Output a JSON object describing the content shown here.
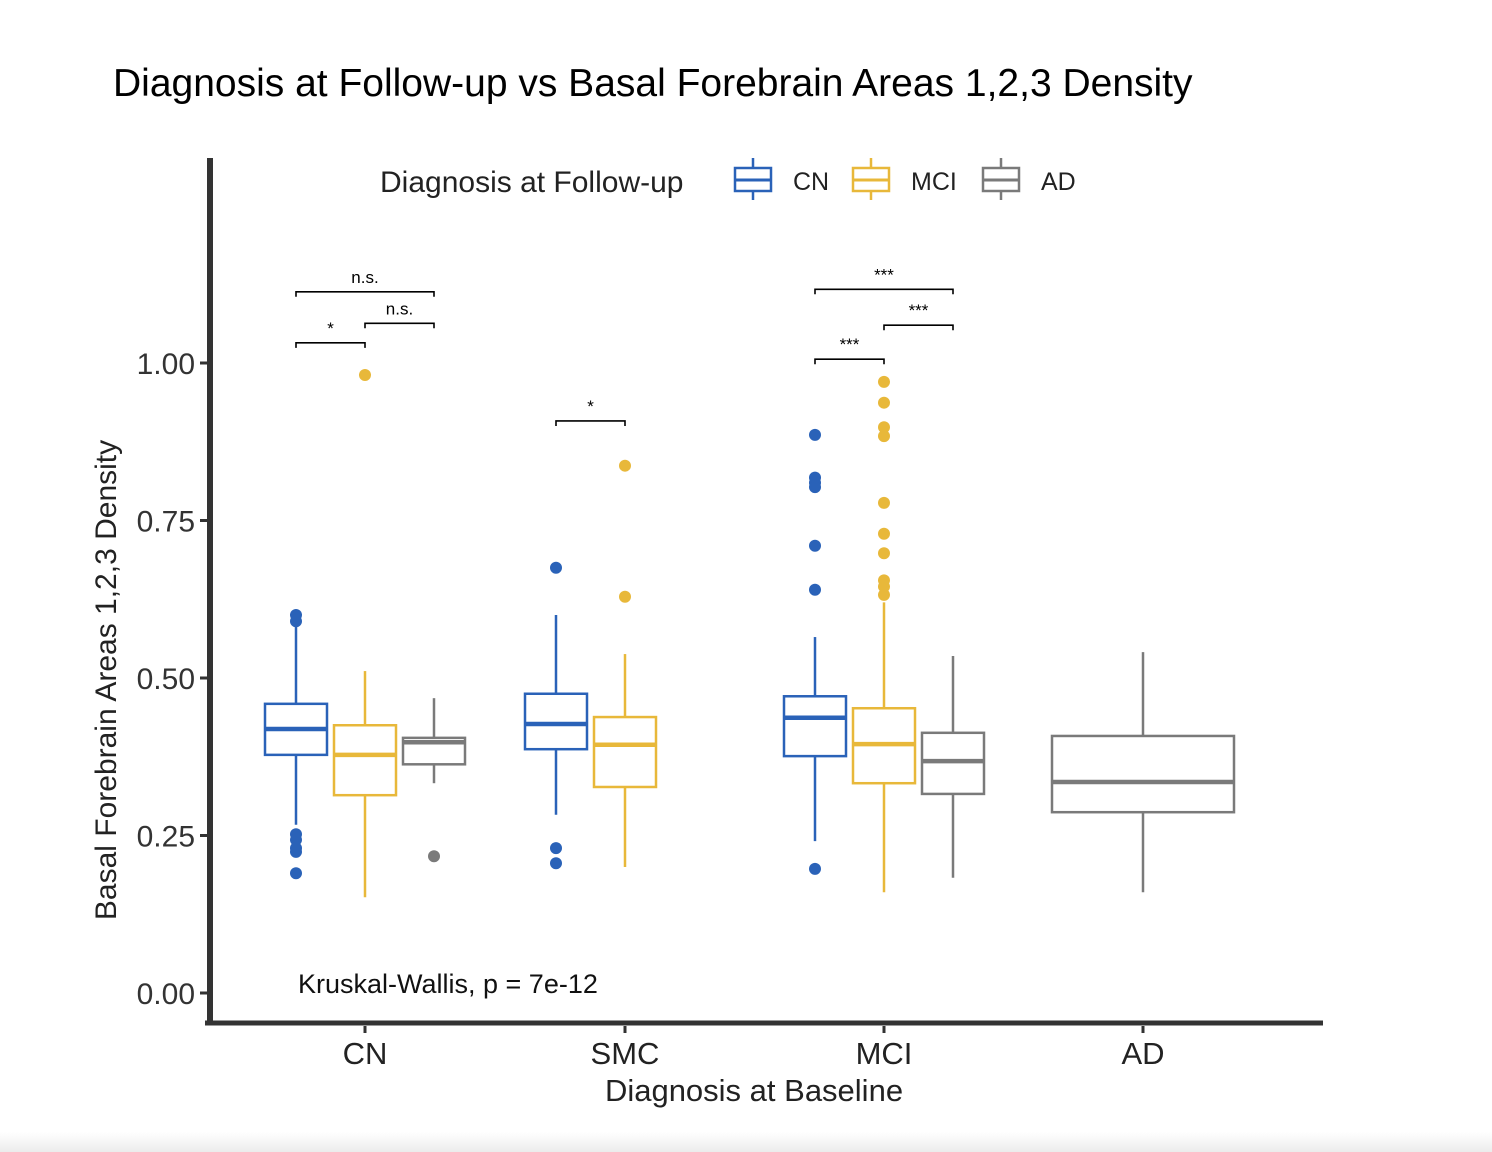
{
  "title": "Diagnosis at Follow-up vs Basal Forebrain Areas 1,2,3 Density",
  "chart_data": {
    "type": "box",
    "title": "Diagnosis at Follow-up vs Basal Forebrain Areas 1,2,3 Density",
    "xlabel": "Diagnosis at Baseline",
    "ylabel": "Basal Forebrain Areas 1,2,3 Density",
    "ylim": [
      0,
      1.2
    ],
    "yticks": [
      0,
      0.25,
      0.5,
      0.75,
      1.0
    ],
    "ytick_labels": [
      "0.00",
      "0.25",
      "0.50",
      "0.75",
      "1.00"
    ],
    "categories": [
      "CN",
      "SMC",
      "MCI",
      "AD"
    ],
    "legend": {
      "title": "Diagnosis at Follow-up",
      "position": "top",
      "entries": [
        "CN",
        "MCI",
        "AD"
      ]
    },
    "colors": {
      "CN": "#2a62b8",
      "MCI": "#e8b83a",
      "AD": "#7a7a7a"
    },
    "annotation": "Kruskal-Wallis, p = 7e-12",
    "boxes": [
      {
        "baseline": "CN",
        "followup": "CN",
        "whisker_low": 0.267,
        "q1": 0.378,
        "median": 0.419,
        "q3": 0.459,
        "whisker_high": 0.584,
        "outliers": [
          0.6,
          0.59,
          0.252,
          0.243,
          0.23,
          0.224,
          0.19
        ]
      },
      {
        "baseline": "CN",
        "followup": "MCI",
        "whisker_low": 0.152,
        "q1": 0.314,
        "median": 0.378,
        "q3": 0.425,
        "whisker_high": 0.511,
        "outliers": [
          0.981
        ]
      },
      {
        "baseline": "CN",
        "followup": "AD",
        "whisker_low": 0.333,
        "q1": 0.363,
        "median": 0.398,
        "q3": 0.405,
        "whisker_high": 0.468,
        "outliers": [
          0.217
        ]
      },
      {
        "baseline": "SMC",
        "followup": "CN",
        "whisker_low": 0.283,
        "q1": 0.387,
        "median": 0.427,
        "q3": 0.475,
        "whisker_high": 0.6,
        "outliers": [
          0.675,
          0.23,
          0.206
        ]
      },
      {
        "baseline": "SMC",
        "followup": "MCI",
        "whisker_low": 0.2,
        "q1": 0.327,
        "median": 0.394,
        "q3": 0.438,
        "whisker_high": 0.538,
        "outliers": [
          0.837,
          0.629
        ]
      },
      {
        "baseline": "MCI",
        "followup": "CN",
        "whisker_low": 0.241,
        "q1": 0.376,
        "median": 0.437,
        "q3": 0.471,
        "whisker_high": 0.565,
        "outliers": [
          0.886,
          0.818,
          0.81,
          0.803,
          0.71,
          0.64,
          0.197
        ]
      },
      {
        "baseline": "MCI",
        "followup": "MCI",
        "whisker_low": 0.16,
        "q1": 0.333,
        "median": 0.395,
        "q3": 0.452,
        "whisker_high": 0.62,
        "outliers": [
          0.97,
          0.937,
          0.898,
          0.884,
          0.778,
          0.729,
          0.698,
          0.655,
          0.645,
          0.632
        ]
      },
      {
        "baseline": "MCI",
        "followup": "AD",
        "whisker_low": 0.183,
        "q1": 0.316,
        "median": 0.368,
        "q3": 0.413,
        "whisker_high": 0.535,
        "outliers": []
      },
      {
        "baseline": "AD",
        "followup": "AD",
        "whisker_low": 0.16,
        "q1": 0.287,
        "median": 0.335,
        "q3": 0.408,
        "whisker_high": 0.541,
        "outliers": []
      }
    ],
    "comparisons": [
      {
        "baseline": "CN",
        "from": "CN",
        "to": "MCI",
        "label": "*",
        "y": 1.032
      },
      {
        "baseline": "CN",
        "from": "MCI",
        "to": "AD",
        "label": "n.s.",
        "y": 1.063
      },
      {
        "baseline": "CN",
        "from": "CN",
        "to": "AD",
        "label": "n.s.",
        "y": 1.113
      },
      {
        "baseline": "SMC",
        "from": "CN",
        "to": "MCI",
        "label": "*",
        "y": 0.908
      },
      {
        "baseline": "MCI",
        "from": "CN",
        "to": "MCI",
        "label": "***",
        "y": 1.006
      },
      {
        "baseline": "MCI",
        "from": "MCI",
        "to": "AD",
        "label": "***",
        "y": 1.06
      },
      {
        "baseline": "MCI",
        "from": "CN",
        "to": "AD",
        "label": "***",
        "y": 1.117
      }
    ]
  }
}
